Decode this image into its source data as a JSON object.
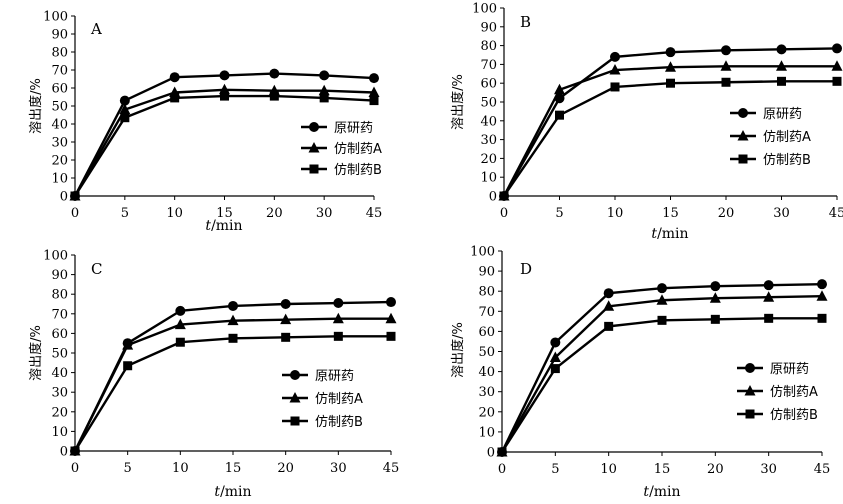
{
  "figure": {
    "ylabel": "溶出度/%",
    "xlabel_var": "t",
    "xlabel_unit": "/min"
  },
  "chart_data": [
    {
      "type": "line",
      "panel_label": "A",
      "x": [
        "0",
        "5",
        "10",
        "15",
        "20",
        "30",
        "45"
      ],
      "ylim": [
        0,
        100
      ],
      "yticks": [
        0,
        10,
        20,
        30,
        40,
        50,
        60,
        70,
        80,
        90,
        100
      ],
      "xlabel": "t/min",
      "ylabel": "溶出度/%",
      "legend_position": "right-middle",
      "series": [
        {
          "name": "原研药",
          "marker": "circle",
          "values": [
            0,
            53,
            66,
            67,
            68,
            67,
            65.5
          ]
        },
        {
          "name": "仿制药A",
          "marker": "triangle",
          "values": [
            0,
            48,
            57.5,
            59,
            58.5,
            58.5,
            57.5
          ]
        },
        {
          "name": "仿制药B",
          "marker": "square",
          "values": [
            0,
            43.5,
            54.5,
            55.5,
            55.5,
            54.5,
            53
          ]
        }
      ]
    },
    {
      "type": "line",
      "panel_label": "B",
      "x": [
        "0",
        "5",
        "10",
        "15",
        "20",
        "30",
        "45"
      ],
      "ylim": [
        0,
        100
      ],
      "yticks": [
        0,
        10,
        20,
        30,
        40,
        50,
        60,
        70,
        80,
        90,
        100
      ],
      "xlabel": "t/min",
      "ylabel": "溶出度/%",
      "legend_position": "right-middle",
      "series": [
        {
          "name": "原研药",
          "marker": "circle",
          "values": [
            0,
            52,
            74,
            76.5,
            77.5,
            78,
            78.5
          ]
        },
        {
          "name": "仿制药A",
          "marker": "triangle",
          "values": [
            0,
            56.5,
            67,
            68.5,
            69,
            69,
            69
          ]
        },
        {
          "name": "仿制药B",
          "marker": "square",
          "values": [
            0,
            43,
            58,
            60,
            60.5,
            61,
            61
          ]
        }
      ]
    },
    {
      "type": "line",
      "panel_label": "C",
      "x": [
        "0",
        "5",
        "10",
        "15",
        "20",
        "30",
        "45"
      ],
      "ylim": [
        0,
        100
      ],
      "yticks": [
        0,
        10,
        20,
        30,
        40,
        50,
        60,
        70,
        80,
        90,
        100
      ],
      "xlabel": "t/min",
      "ylabel": "溶出度/%",
      "legend_position": "right-bottom",
      "series": [
        {
          "name": "原研药",
          "marker": "circle",
          "values": [
            0,
            55,
            71.5,
            74,
            75,
            75.5,
            76
          ]
        },
        {
          "name": "仿制药A",
          "marker": "triangle",
          "values": [
            0,
            54,
            64.5,
            66.5,
            67,
            67.5,
            67.5
          ]
        },
        {
          "name": "仿制药B",
          "marker": "square",
          "values": [
            0,
            43.5,
            55.5,
            57.5,
            58,
            58.5,
            58.5
          ]
        }
      ]
    },
    {
      "type": "line",
      "panel_label": "D",
      "x": [
        "0",
        "5",
        "10",
        "15",
        "20",
        "30",
        "45"
      ],
      "ylim": [
        0,
        100
      ],
      "yticks": [
        0,
        10,
        20,
        30,
        40,
        50,
        60,
        70,
        80,
        90,
        100
      ],
      "xlabel": "t/min",
      "ylabel": "溶出度/%",
      "legend_position": "right-bottom",
      "series": [
        {
          "name": "原研药",
          "marker": "circle",
          "values": [
            0,
            54.5,
            79,
            81.5,
            82.5,
            83,
            83.5
          ]
        },
        {
          "name": "仿制药A",
          "marker": "triangle",
          "values": [
            0,
            47,
            72.5,
            75.5,
            76.5,
            77,
            77.5
          ]
        },
        {
          "name": "仿制药B",
          "marker": "square",
          "values": [
            0,
            41.5,
            62.5,
            65.5,
            66,
            66.5,
            66.5
          ]
        }
      ]
    }
  ]
}
